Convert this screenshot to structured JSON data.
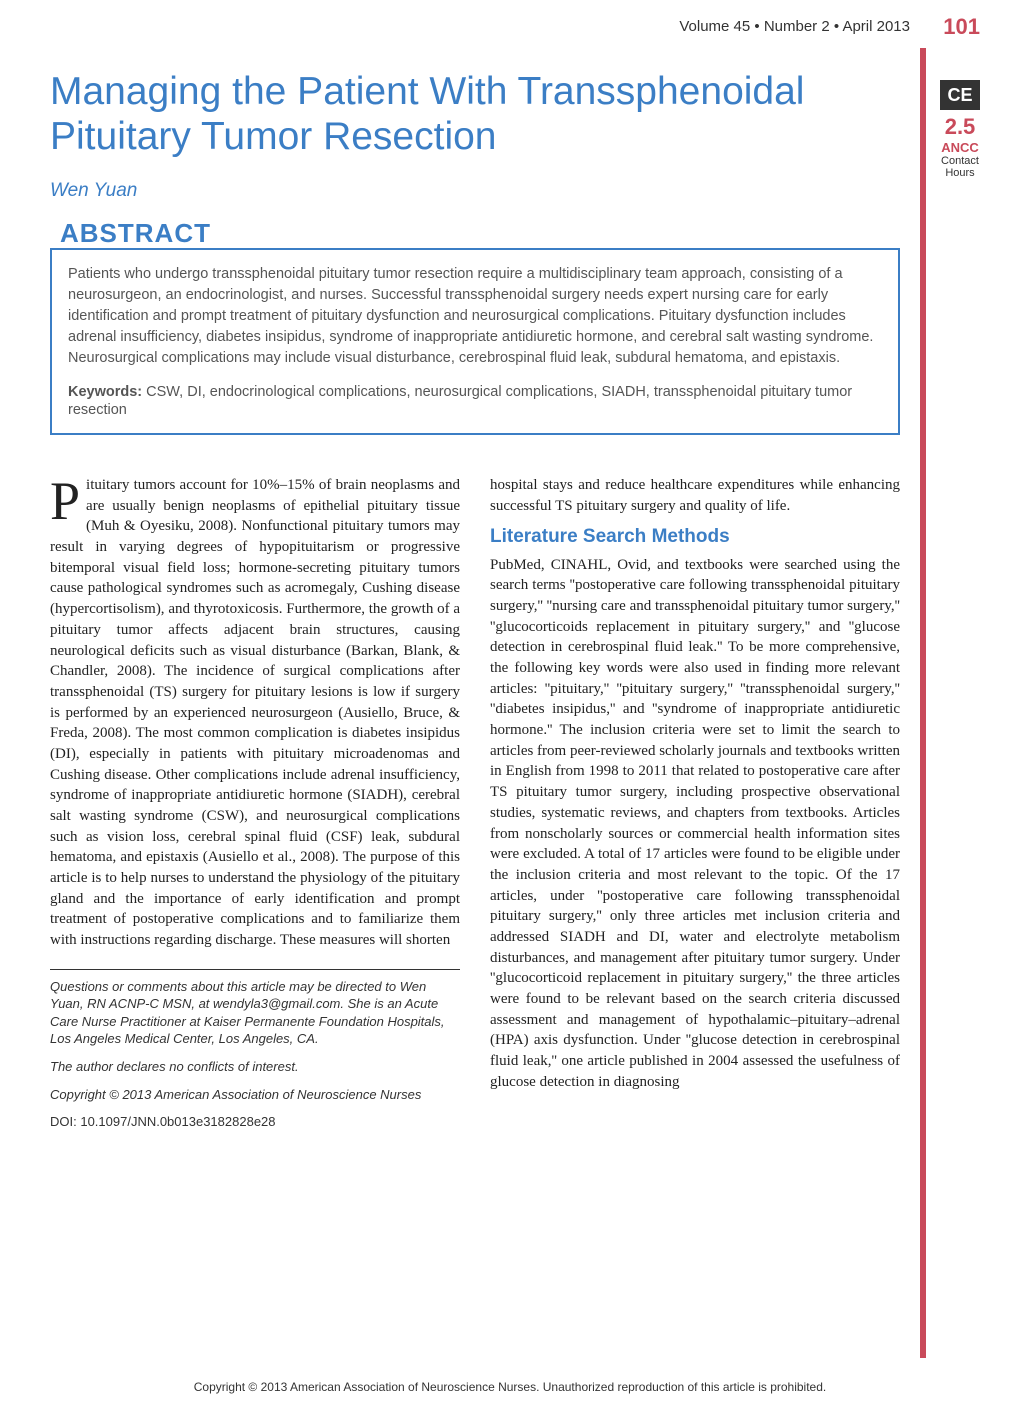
{
  "header": {
    "volume_info": "Volume 45 • Number 2 • April 2013",
    "page_number": "101",
    "sidebar_color": "#c94a5a"
  },
  "ce_badge": {
    "label": "CE",
    "hours": "2.5",
    "org": "ANCC",
    "contact": "Contact",
    "hours_label": "Hours",
    "badge_bg": "#333333",
    "badge_fg": "#ffffff",
    "accent_color": "#c94a5a"
  },
  "article": {
    "title": "Managing the Patient With Transsphenoidal Pituitary Tumor Resection",
    "title_color": "#3b7ec5",
    "author": "Wen Yuan"
  },
  "abstract": {
    "heading": "ABSTRACT",
    "text": "Patients who undergo transsphenoidal pituitary tumor resection require a multidisciplinary team approach, consisting of a neurosurgeon, an endocrinologist, and nurses. Successful transsphenoidal surgery needs expert nursing care for early identification and prompt treatment of pituitary dysfunction and neurosurgical complications. Pituitary dysfunction includes adrenal insufficiency, diabetes insipidus, syndrome of inappropriate antidiuretic hormone, and cerebral salt wasting syndrome. Neurosurgical complications may include visual disturbance, cerebrospinal fluid leak, subdural hematoma, and epistaxis.",
    "keywords_label": "Keywords:",
    "keywords": "CSW, DI, endocrinological complications, neurosurgical complications, SIADH, transsphenoidal pituitary tumor resection",
    "border_color": "#3b7ec5"
  },
  "body": {
    "dropcap": "P",
    "intro_text": "ituitary tumors account for 10%–15% of brain neoplasms and are usually benign neoplasms of epithelial pituitary tissue (Muh & Oyesiku, 2008). Nonfunctional pituitary tumors may result in varying degrees of hypopituitarism or progressive bitemporal visual field loss; hormone-secreting pituitary tumors cause pathological syndromes such as acromegaly, Cushing disease (hypercortisolism), and thyrotoxicosis. Furthermore, the growth of a pituitary tumor affects adjacent brain structures, causing neurological deficits such as visual disturbance (Barkan, Blank, & Chandler, 2008). The incidence of surgical complications after transsphenoidal (TS) surgery for pituitary lesions is low if surgery is performed by an experienced neurosurgeon (Ausiello, Bruce, & Freda, 2008). The most common complication is diabetes insipidus (DI), especially in patients with pituitary microadenomas and Cushing disease. Other complications include adrenal insufficiency, syndrome of inappropriate antidiuretic hormone (SIADH), cerebral salt wasting syndrome (CSW), and neurosurgical complications such as vision loss, cerebral spinal fluid (CSF) leak, subdural hematoma, and epistaxis (Ausiello et al., 2008). The purpose of this article is to help nurses to understand the physiology of the pituitary gland and the importance of early identification and prompt treatment of postoperative complications and to familiarize them with instructions regarding discharge. These measures will shorten",
    "col2_intro": "hospital stays and reduce healthcare expenditures while enhancing successful TS pituitary surgery and quality of life.",
    "section1_heading": "Literature Search Methods",
    "section1_text": "PubMed, CINAHL, Ovid, and textbooks were searched using the search terms ''postoperative care following transsphenoidal pituitary surgery,'' ''nursing care and transsphenoidal pituitary tumor surgery,'' ''glucocorticoids replacement in pituitary surgery,'' and ''glucose detection in cerebrospinal fluid leak.'' To be more comprehensive, the following key words were also used in finding more relevant articles: ''pituitary,'' ''pituitary surgery,'' ''transsphenoidal surgery,'' ''diabetes insipidus,'' and ''syndrome of inappropriate antidiuretic hormone.'' The inclusion criteria were set to limit the search to articles from peer-reviewed scholarly journals and textbooks written in English from 1998 to 2011 that related to postoperative care after TS pituitary tumor surgery, including prospective observational studies, systematic reviews, and chapters from textbooks. Articles from nonscholarly sources or commercial health information sites were excluded. A total of 17 articles were found to be eligible under the inclusion criteria and most relevant to the topic. Of the 17 articles, under ''postoperative care following transsphenoidal pituitary surgery,'' only three articles met inclusion criteria and addressed SIADH and DI, water and electrolyte metabolism disturbances, and management after pituitary tumor surgery. Under ''glucocorticoid replacement in pituitary surgery,'' the three articles were found to be relevant based on the search criteria discussed assessment and management of hypothalamic–pituitary–adrenal (HPA) axis dysfunction. Under ''glucose detection in cerebrospinal fluid leak,'' one article published in 2004 assessed the usefulness of glucose detection in diagnosing"
  },
  "footnotes": {
    "questions": "Questions or comments about this article may be directed to Wen Yuan, RN ACNP-C MSN, at wendyla3@gmail.com. She is an Acute Care Nurse Practitioner at Kaiser Permanente Foundation Hospitals, Los Angeles Medical Center, Los Angeles, CA.",
    "conflicts": "The author declares no conflicts of interest.",
    "copyright": "Copyright © 2013 American Association of Neuroscience Nurses",
    "doi": "DOI: 10.1097/JNN.0b013e3182828e28"
  },
  "bottom_copyright": "Copyright © 2013 American Association of Neuroscience Nurses. Unauthorized reproduction of this article is prohibited."
}
